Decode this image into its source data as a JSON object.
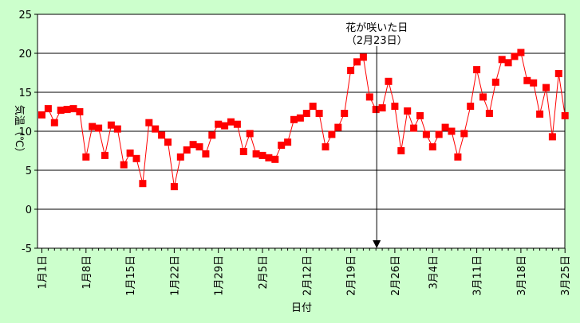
{
  "chart_data": {
    "type": "line",
    "title": "",
    "xlabel": "日付",
    "ylabel": "気温（℃）",
    "ylim": [
      -5,
      25
    ],
    "y_ticks": [
      -5,
      0,
      5,
      10,
      15,
      20,
      25
    ],
    "grid": true,
    "x_tick_labels": [
      "1月1日",
      "1月8日",
      "1月15日",
      "1月22日",
      "1月29日",
      "2月5日",
      "2月12日",
      "2月19日",
      "2月26日",
      "3月4日",
      "3月11日",
      "3月18日",
      "3月25日"
    ],
    "annotation": {
      "line1": "花が咲いた日",
      "line2": "（2月23日）",
      "date": "2月23日",
      "arrow_to": -5
    },
    "series": [
      {
        "color": "#ff0000",
        "marker": "square",
        "x": [
          "1月1日",
          "1月2日",
          "1月3日",
          "1月4日",
          "1月5日",
          "1月6日",
          "1月7日",
          "1月8日",
          "1月9日",
          "1月10日",
          "1月11日",
          "1月12日",
          "1月13日",
          "1月14日",
          "1月15日",
          "1月16日",
          "1月17日",
          "1月18日",
          "1月19日",
          "1月20日",
          "1月21日",
          "1月22日",
          "1月23日",
          "1月24日",
          "1月25日",
          "1月26日",
          "1月27日",
          "1月28日",
          "1月29日",
          "1月30日",
          "1月31日",
          "2月1日",
          "2月2日",
          "2月3日",
          "2月4日",
          "2月5日",
          "2月6日",
          "2月7日",
          "2月8日",
          "2月9日",
          "2月10日",
          "2月11日",
          "2月12日",
          "2月13日",
          "2月14日",
          "2月15日",
          "2月16日",
          "2月17日",
          "2月18日",
          "2月19日",
          "2月20日",
          "2月21日",
          "2月22日",
          "2月23日",
          "2月24日",
          "2月25日",
          "2月26日",
          "2月27日",
          "2月28日",
          "3月1日",
          "3月2日",
          "3月3日",
          "3月4日",
          "3月5日",
          "3月6日",
          "3月7日",
          "3月8日",
          "3月9日",
          "3月10日",
          "3月11日",
          "3月12日",
          "3月13日",
          "3月14日",
          "3月15日",
          "3月16日",
          "3月17日",
          "3月18日",
          "3月19日",
          "3月20日",
          "3月21日",
          "3月22日",
          "3月23日",
          "3月24日",
          "3月25日"
        ],
        "values": [
          12.1,
          12.9,
          11.1,
          12.7,
          12.8,
          12.9,
          12.5,
          6.7,
          10.6,
          10.4,
          6.9,
          10.8,
          10.3,
          5.7,
          7.2,
          6.5,
          3.3,
          11.1,
          10.3,
          9.5,
          8.6,
          2.9,
          6.7,
          7.6,
          8.3,
          8.0,
          7.1,
          9.5,
          10.9,
          10.7,
          11.2,
          10.9,
          7.4,
          9.7,
          7.1,
          6.9,
          6.6,
          6.4,
          8.2,
          8.6,
          11.5,
          11.7,
          12.3,
          13.2,
          12.3,
          8.0,
          9.6,
          10.5,
          12.3,
          17.8,
          18.9,
          19.5,
          14.4,
          12.8,
          13.0,
          16.4,
          13.2,
          7.5,
          12.6,
          10.4,
          12.0,
          9.6,
          8.0,
          9.6,
          10.5,
          10.0,
          6.7,
          9.7,
          13.2,
          17.9,
          14.4,
          12.3,
          16.3,
          19.2,
          18.8,
          19.6,
          20.1,
          16.5,
          16.2,
          12.2,
          15.6,
          9.3,
          17.4,
          12.0
        ]
      }
    ]
  }
}
